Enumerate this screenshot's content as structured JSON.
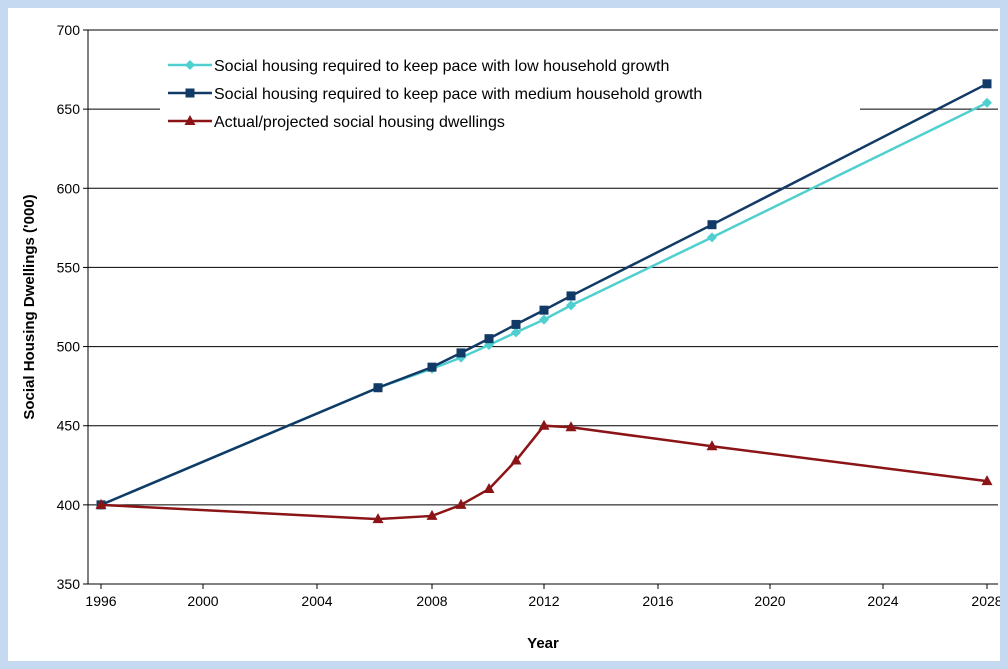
{
  "chart_data": {
    "type": "line",
    "title": "",
    "xlabel": "Year",
    "ylabel": "Social Housing Dwellings ('000)",
    "ylim": [
      350,
      700
    ],
    "y_ticks": [
      350,
      400,
      450,
      500,
      550,
      600,
      650,
      700
    ],
    "x_tick_labels": [
      "1996",
      "2000",
      "2004",
      "2008",
      "2012",
      "2016",
      "2020",
      "2024",
      "2028"
    ],
    "grid": "horizontal",
    "legend_position": "top-left",
    "series": [
      {
        "name": "Social housing required to keep pace with low household growth",
        "color": "#4fcfcf",
        "marker": "diamond",
        "points": [
          {
            "x": "1996",
            "y": 400
          },
          {
            "x": "2006",
            "y": 474
          },
          {
            "x": "2008",
            "y": 486
          },
          {
            "x": "2009",
            "y": 493
          },
          {
            "x": "2010",
            "y": 501
          },
          {
            "x": "2011",
            "y": 509
          },
          {
            "x": "2012",
            "y": 517
          },
          {
            "x": "2013",
            "y": 526
          },
          {
            "x": "2018",
            "y": 569
          },
          {
            "x": "2028",
            "y": 654
          }
        ]
      },
      {
        "name": "Social housing required to keep pace with medium household growth",
        "color": "#123a66",
        "marker": "square",
        "points": [
          {
            "x": "1996",
            "y": 400
          },
          {
            "x": "2006",
            "y": 474
          },
          {
            "x": "2008",
            "y": 487
          },
          {
            "x": "2009",
            "y": 496
          },
          {
            "x": "2010",
            "y": 505
          },
          {
            "x": "2011",
            "y": 514
          },
          {
            "x": "2012",
            "y": 523
          },
          {
            "x": "2013",
            "y": 532
          },
          {
            "x": "2018",
            "y": 577
          },
          {
            "x": "2028",
            "y": 666
          }
        ]
      },
      {
        "name": "Actual/projected social housing dwellings",
        "color": "#8b1416",
        "marker": "triangle",
        "points": [
          {
            "x": "1996",
            "y": 400
          },
          {
            "x": "2006",
            "y": 391
          },
          {
            "x": "2008",
            "y": 393
          },
          {
            "x": "2009",
            "y": 400
          },
          {
            "x": "2010",
            "y": 410
          },
          {
            "x": "2011",
            "y": 428
          },
          {
            "x": "2012",
            "y": 450
          },
          {
            "x": "2013",
            "y": 449
          },
          {
            "x": "2018",
            "y": 437
          },
          {
            "x": "2028",
            "y": 415
          }
        ]
      }
    ]
  }
}
